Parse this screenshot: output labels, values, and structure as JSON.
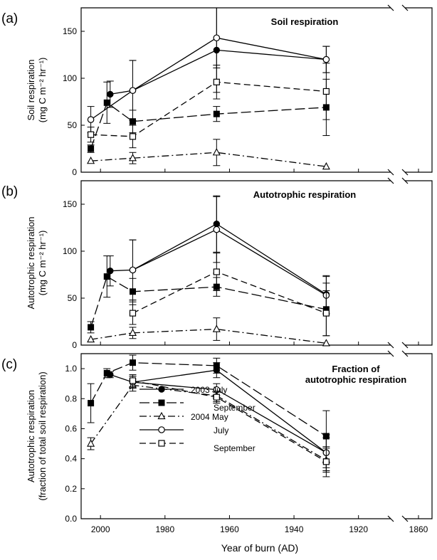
{
  "chart_data": [
    {
      "panel_label": "(a)",
      "title": "Soil respiration",
      "type": "line",
      "ylabel_lines": [
        "Soil respiration",
        "(mg C m⁻² hr⁻¹)"
      ],
      "ylim": [
        0,
        175
      ],
      "yticks": [
        0,
        50,
        100,
        150
      ],
      "ytick_labels": [
        "0",
        "50",
        "100",
        "150"
      ],
      "series": [
        {
          "name": "2003 July",
          "marker": "filled-circle",
          "dash": "solid",
          "x": [
            1997,
            1990,
            1964,
            1930
          ],
          "y": [
            83,
            87,
            130,
            120
          ],
          "err": [
            14,
            32,
            45,
            14
          ]
        },
        {
          "name": "2003 September",
          "marker": "filled-square",
          "dash": "long-dash",
          "x": [
            2003,
            1998,
            1990,
            1964,
            1930
          ],
          "y": [
            25,
            74,
            54,
            62,
            69
          ],
          "err": [
            4,
            22,
            12,
            8,
            30
          ]
        },
        {
          "name": "2004 May",
          "marker": "open-triangle",
          "dash": "dash-dot",
          "x": [
            2003,
            1990,
            1964,
            1930
          ],
          "y": [
            12,
            15,
            21,
            6
          ],
          "err": [
            0,
            6,
            14,
            0
          ]
        },
        {
          "name": "July",
          "marker": "open-circle",
          "dash": "solid",
          "x": [
            2003,
            1990,
            1964,
            1930
          ],
          "y": [
            56,
            87,
            143,
            120
          ],
          "err": [
            14,
            32,
            32,
            14
          ]
        },
        {
          "name": "September",
          "marker": "open-square",
          "dash": "medium-dash",
          "x": [
            2003,
            1990,
            1964,
            1930
          ],
          "y": [
            40,
            38,
            96,
            86
          ],
          "err": [
            8,
            12,
            18,
            30
          ]
        }
      ]
    },
    {
      "panel_label": "(b)",
      "title": "Autotrophic respiration",
      "type": "line",
      "ylabel_lines": [
        "Autotrophic respiration",
        "(mg C m⁻² hr⁻¹)"
      ],
      "ylim": [
        0,
        175
      ],
      "yticks": [
        0,
        50,
        100,
        150
      ],
      "ytick_labels": [
        "0",
        "50",
        "100",
        "150"
      ],
      "series": [
        {
          "name": "2003 July",
          "marker": "filled-circle",
          "dash": "solid",
          "x": [
            1997,
            1990,
            1964,
            1930
          ],
          "y": [
            79,
            80,
            129,
            54
          ],
          "err": [
            16,
            32,
            30,
            20
          ]
        },
        {
          "name": "2003 September",
          "marker": "filled-square",
          "dash": "long-dash",
          "x": [
            2003,
            1998,
            1990,
            1964,
            1930
          ],
          "y": [
            19,
            73,
            57,
            62,
            38
          ],
          "err": [
            6,
            22,
            14,
            10,
            28
          ]
        },
        {
          "name": "2004 May",
          "marker": "open-triangle",
          "dash": "dash-dot",
          "x": [
            2003,
            1990,
            1964,
            1930
          ],
          "y": [
            6,
            13,
            17,
            2
          ],
          "err": [
            0,
            6,
            12,
            0
          ]
        },
        {
          "name": "July",
          "marker": "open-circle",
          "dash": "solid",
          "x": [
            2003,
            1990,
            1964,
            1930
          ],
          "y": [
            null,
            80,
            123,
            53
          ],
          "err": [
            0,
            32,
            35,
            20
          ]
        },
        {
          "name": "September",
          "marker": "open-square",
          "dash": "medium-dash",
          "x": [
            2003,
            1990,
            1964,
            1930
          ],
          "y": [
            null,
            34,
            78,
            34
          ],
          "err": [
            0,
            12,
            20,
            24
          ]
        }
      ]
    },
    {
      "panel_label": "(c)",
      "title_lines": [
        "Fraction of",
        "autotrophic respiration"
      ],
      "type": "line",
      "ylabel_lines": [
        "Autotrophic respiration",
        "(fraction of total soil respiration)"
      ],
      "ylim": [
        0,
        1.1
      ],
      "yticks": [
        0,
        0.2,
        0.4,
        0.6,
        0.8,
        1.0
      ],
      "ytick_labels": [
        "0.0",
        "0.2",
        "0.4",
        "0.6",
        "0.8",
        "1.0"
      ],
      "series": [
        {
          "name": "2003 July",
          "marker": "filled-circle",
          "dash": "solid",
          "x": [
            1997,
            1990,
            1964,
            1930
          ],
          "y": [
            0.96,
            0.91,
            0.99,
            0.44
          ],
          "err": [
            0.02,
            0.04,
            0.05,
            0.1
          ]
        },
        {
          "name": "2003 September",
          "marker": "filled-square",
          "dash": "long-dash",
          "x": [
            2003,
            1998,
            1990,
            1964,
            1930
          ],
          "y": [
            0.77,
            0.97,
            1.04,
            1.02,
            0.55
          ],
          "err": [
            0.13,
            0.03,
            0.05,
            0.05,
            0.17
          ]
        },
        {
          "name": "2004 May",
          "marker": "open-triangle",
          "dash": "dash-dot",
          "x": [
            2003,
            1990,
            1964,
            1930
          ],
          "y": [
            0.5,
            0.89,
            0.82,
            0.39
          ],
          "err": [
            0.04,
            0.04,
            0.04,
            0.08
          ]
        },
        {
          "name": "July",
          "marker": "open-circle",
          "dash": "solid",
          "x": [
            1990,
            1964,
            1930
          ],
          "y": [
            0.91,
            0.86,
            0.44
          ],
          "err": [
            0.04,
            0.04,
            0.12
          ]
        },
        {
          "name": "September",
          "marker": "open-square",
          "dash": "medium-dash",
          "x": [
            1990,
            1964,
            1930
          ],
          "y": [
            0.92,
            0.81,
            0.38
          ],
          "err": [
            0.04,
            0.04,
            0.1
          ]
        }
      ]
    }
  ],
  "shared": {
    "xlabel": "Year of burn (AD)",
    "xticks_main": [
      2000,
      1980,
      1960,
      1940,
      1920
    ],
    "xticks_main_labels": [
      "2000",
      "1980",
      "1960",
      "1940",
      "1920"
    ],
    "xlim_main": [
      2006,
      1910
    ],
    "xticks_break": [
      1860
    ],
    "xticks_break_labels": [
      "1860"
    ],
    "xlim_break": [
      1866,
      1854
    ],
    "axis_break": true
  },
  "legend": {
    "placement": "lower-left of panel (c)",
    "entries": [
      {
        "label": "2003 July",
        "marker": "filled-circle",
        "dash": "solid"
      },
      {
        "label": "September",
        "marker": "filled-square",
        "dash": "long-dash"
      },
      {
        "label": "2004 May",
        "marker": "open-triangle",
        "dash": "dash-dot"
      },
      {
        "label": "July",
        "marker": "open-circle",
        "dash": "solid"
      },
      {
        "label": "September",
        "marker": "open-square",
        "dash": "medium-dash"
      }
    ]
  },
  "colors": {
    "ink": "#000000",
    "background": "#ffffff"
  }
}
